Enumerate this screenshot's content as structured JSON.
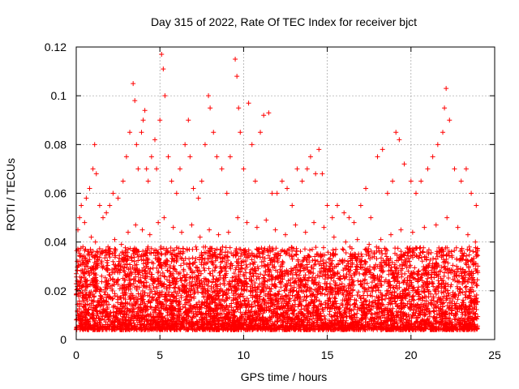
{
  "chart_data": {
    "type": "scatter",
    "title": "Day 315 of 2022, Rate Of TEC Index for receiver bjct",
    "xlabel": "GPS time / hours",
    "ylabel": "ROTI / TECUs",
    "xlim": [
      0,
      25
    ],
    "ylim": [
      0,
      0.12
    ],
    "x_ticks": [
      0,
      5,
      10,
      15,
      20,
      25
    ],
    "y_ticks": [
      0,
      0.02,
      0.04,
      0.06,
      0.08,
      0.1,
      0.12
    ],
    "x_tick_labels": [
      "0",
      "5",
      "10",
      "15",
      "20",
      "25"
    ],
    "y_tick_labels": [
      "0",
      "0.02",
      "0.04",
      "0.06",
      "0.08",
      "0.1",
      "0.12"
    ],
    "grid": true,
    "marker": "plus",
    "colors": {
      "series": "#ff0000",
      "grid": "#a0a0a0",
      "frame": "#000000"
    },
    "series": [
      {
        "x": [
          0.1,
          0.2,
          0.3,
          0.5,
          0.6,
          0.8,
          1.0,
          1.1,
          1.2,
          1.4,
          1.6,
          1.8,
          2.0,
          2.2,
          2.5,
          2.8,
          3.0,
          3.2,
          3.4,
          3.5,
          3.6,
          3.7,
          3.9,
          4.0,
          4.1,
          4.2,
          4.3,
          4.5,
          4.7,
          4.8,
          5.0,
          5.1,
          5.2,
          5.3,
          5.5,
          5.7,
          6.0,
          6.2,
          6.5,
          6.7,
          6.8,
          7.0,
          7.3,
          7.5,
          7.7,
          7.9,
          8.0,
          8.2,
          8.4,
          8.7,
          9.0,
          9.2,
          9.5,
          9.6,
          9.7,
          9.8,
          10.0,
          10.3,
          10.5,
          10.7,
          11.0,
          11.2,
          11.5,
          11.7,
          12.0,
          12.3,
          12.6,
          12.9,
          13.2,
          13.5,
          13.8,
          14.0,
          14.3,
          14.5,
          14.7,
          15.0,
          15.3,
          15.6,
          16.0,
          16.3,
          16.6,
          17.0,
          17.3,
          17.6,
          18.0,
          18.3,
          18.6,
          18.9,
          19.1,
          19.3,
          19.6,
          20.0,
          20.3,
          20.6,
          21.0,
          21.3,
          21.6,
          21.9,
          22.0,
          22.1,
          22.3,
          22.6,
          23.0,
          23.3,
          23.6,
          23.9
        ],
        "y": [
          0.045,
          0.05,
          0.055,
          0.048,
          0.058,
          0.062,
          0.07,
          0.08,
          0.068,
          0.055,
          0.05,
          0.052,
          0.055,
          0.06,
          0.058,
          0.065,
          0.075,
          0.085,
          0.105,
          0.098,
          0.08,
          0.07,
          0.085,
          0.09,
          0.094,
          0.07,
          0.065,
          0.075,
          0.082,
          0.07,
          0.09,
          0.117,
          0.111,
          0.1,
          0.075,
          0.065,
          0.06,
          0.07,
          0.08,
          0.09,
          0.075,
          0.062,
          0.058,
          0.065,
          0.08,
          0.1,
          0.095,
          0.085,
          0.075,
          0.07,
          0.06,
          0.075,
          0.115,
          0.108,
          0.095,
          0.085,
          0.07,
          0.097,
          0.08,
          0.065,
          0.085,
          0.092,
          0.093,
          0.06,
          0.06,
          0.065,
          0.062,
          0.055,
          0.07,
          0.065,
          0.07,
          0.075,
          0.068,
          0.078,
          0.068,
          0.055,
          0.05,
          0.055,
          0.052,
          0.05,
          0.048,
          0.055,
          0.062,
          0.05,
          0.075,
          0.078,
          0.06,
          0.065,
          0.085,
          0.082,
          0.072,
          0.065,
          0.06,
          0.065,
          0.07,
          0.075,
          0.08,
          0.085,
          0.095,
          0.103,
          0.09,
          0.07,
          0.065,
          0.07,
          0.06,
          0.055
        ]
      },
      {
        "x": [
          0.15,
          0.4,
          0.7,
          0.9,
          1.15,
          1.5,
          1.9,
          2.3,
          2.7,
          3.1,
          3.55,
          3.95,
          4.4,
          4.9,
          5.25,
          5.8,
          6.3,
          6.9,
          7.4,
          7.95,
          8.5,
          9.1,
          9.65,
          10.2,
          10.8,
          11.35,
          11.9,
          12.5,
          13.1,
          13.7,
          14.2,
          14.8,
          15.4,
          16.1,
          16.8,
          17.5,
          18.2,
          18.8,
          19.4,
          20.1,
          20.8,
          21.5,
          22.15,
          22.8,
          23.4,
          23.85
        ],
        "y": [
          0.032,
          0.038,
          0.035,
          0.042,
          0.04,
          0.036,
          0.038,
          0.041,
          0.039,
          0.044,
          0.047,
          0.045,
          0.043,
          0.048,
          0.05,
          0.046,
          0.044,
          0.047,
          0.042,
          0.045,
          0.043,
          0.044,
          0.05,
          0.048,
          0.046,
          0.049,
          0.045,
          0.043,
          0.047,
          0.044,
          0.048,
          0.046,
          0.042,
          0.04,
          0.041,
          0.039,
          0.041,
          0.043,
          0.045,
          0.044,
          0.046,
          0.047,
          0.05,
          0.046,
          0.043,
          0.04
        ]
      }
    ]
  }
}
